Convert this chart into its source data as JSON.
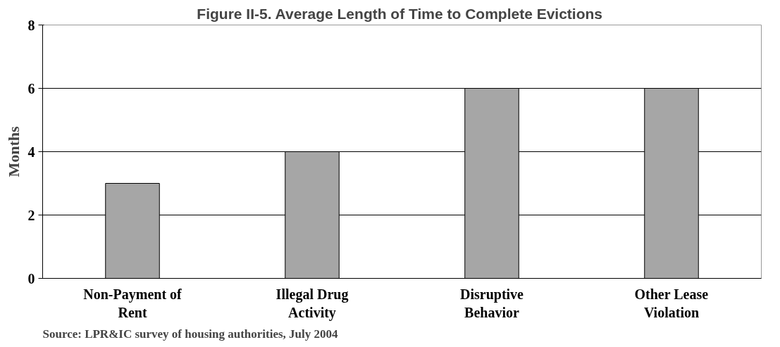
{
  "chart_data": {
    "type": "bar",
    "title": "Figure II-5.  Average Length of Time to Complete Evictions",
    "ylabel": "Months",
    "categories": [
      "Non-Payment of Rent",
      "Illegal Drug Activity",
      "Disruptive Behavior",
      "Other Lease Violation"
    ],
    "values": [
      3,
      4,
      6,
      6
    ],
    "color": "#a6a6a6",
    "ylim": [
      0,
      8
    ],
    "yticks": [
      0,
      2,
      4,
      6,
      8
    ],
    "grid": "y",
    "annotations": [
      "Source: LPR&IC survey of housing authorities, July 2004"
    ]
  }
}
